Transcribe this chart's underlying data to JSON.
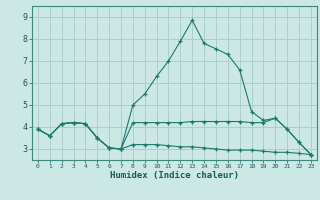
{
  "xlabel": "Humidex (Indice chaleur)",
  "bg_color": "#cce8e4",
  "grid_color": "#aacfcb",
  "line_color": "#1a7a6e",
  "xlim": [
    -0.5,
    23.5
  ],
  "ylim": [
    2.5,
    9.5
  ],
  "xticks": [
    0,
    1,
    2,
    3,
    4,
    5,
    6,
    7,
    8,
    9,
    10,
    11,
    12,
    13,
    14,
    15,
    16,
    17,
    18,
    19,
    20,
    21,
    22,
    23
  ],
  "yticks": [
    3,
    4,
    5,
    6,
    7,
    8,
    9
  ],
  "series1_x": [
    0,
    1,
    2,
    3,
    4,
    5,
    6,
    7,
    8,
    9,
    10,
    11,
    12,
    13,
    14,
    15,
    16,
    17,
    18,
    19,
    20,
    21,
    22,
    23
  ],
  "series1_y": [
    3.9,
    3.6,
    4.15,
    4.2,
    4.15,
    3.5,
    3.05,
    3.0,
    4.2,
    4.2,
    4.2,
    4.2,
    4.2,
    4.25,
    4.25,
    4.25,
    4.25,
    4.25,
    4.2,
    4.2,
    4.4,
    3.9,
    3.3,
    2.75
  ],
  "series2_x": [
    0,
    1,
    2,
    3,
    4,
    5,
    6,
    7,
    8,
    9,
    10,
    11,
    12,
    13,
    14,
    15,
    16,
    17,
    18,
    19,
    20,
    21,
    22,
    23
  ],
  "series2_y": [
    3.9,
    3.6,
    4.15,
    4.2,
    4.15,
    3.5,
    3.05,
    3.0,
    5.0,
    5.5,
    6.3,
    7.0,
    7.9,
    8.85,
    7.8,
    7.55,
    7.3,
    6.6,
    4.7,
    4.3,
    4.4,
    3.9,
    3.3,
    2.75
  ],
  "series3_x": [
    0,
    1,
    2,
    3,
    4,
    5,
    6,
    7,
    8,
    9,
    10,
    11,
    12,
    13,
    14,
    15,
    16,
    17,
    18,
    19,
    20,
    21,
    22,
    23
  ],
  "series3_y": [
    3.9,
    3.6,
    4.15,
    4.2,
    4.15,
    3.5,
    3.05,
    3.0,
    3.2,
    3.2,
    3.2,
    3.15,
    3.1,
    3.1,
    3.05,
    3.0,
    2.95,
    2.95,
    2.95,
    2.9,
    2.85,
    2.85,
    2.8,
    2.75
  ]
}
